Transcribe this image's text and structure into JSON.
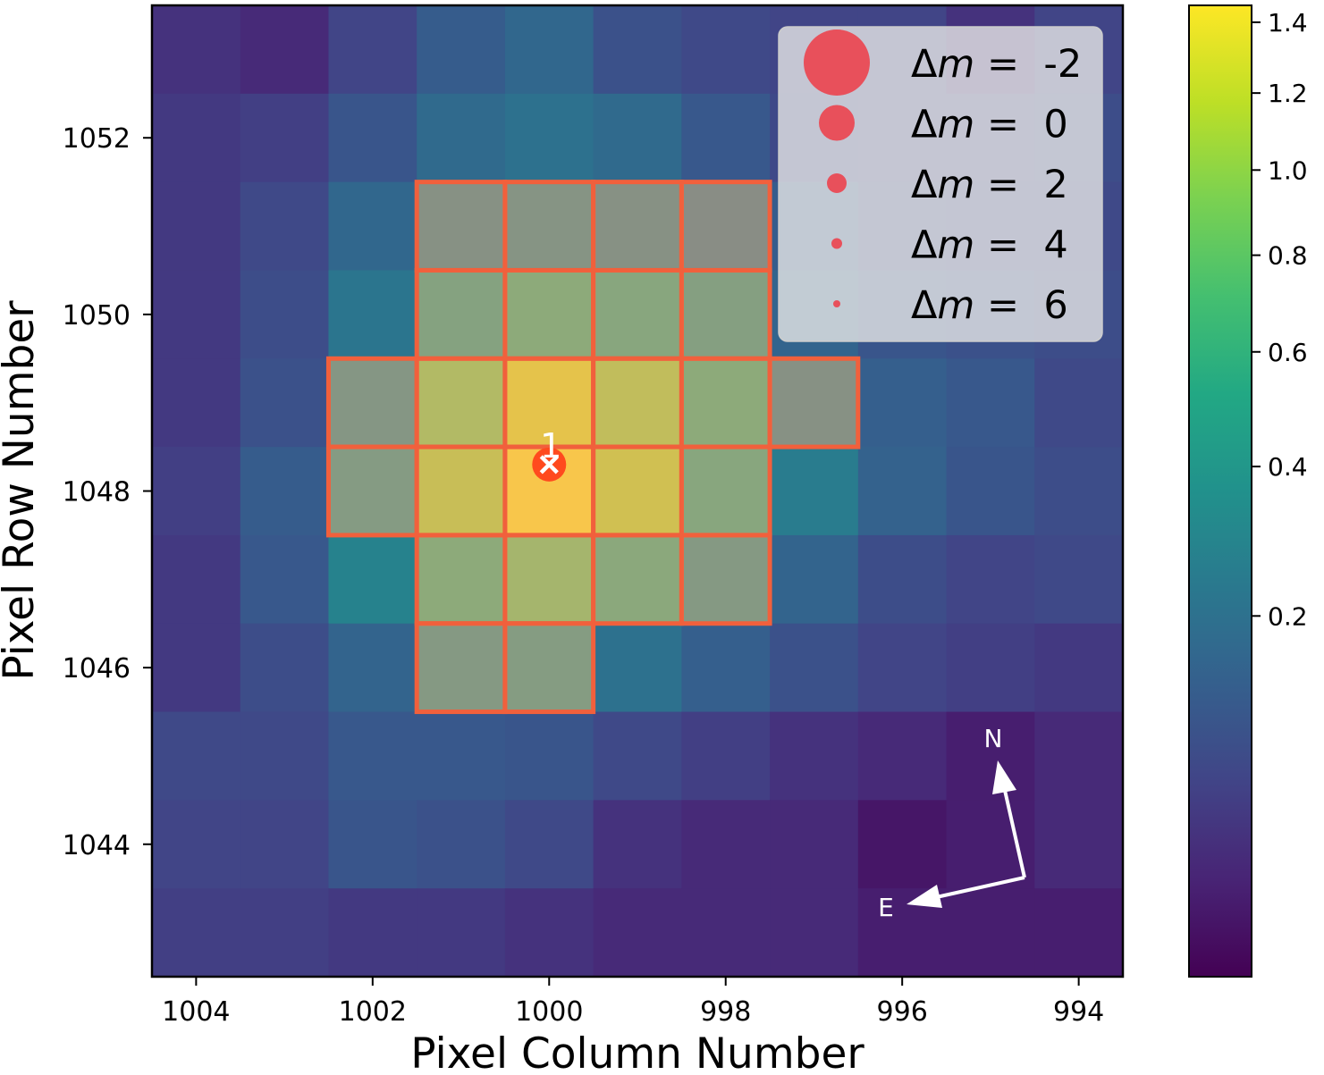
{
  "chart_data": {
    "type": "heatmap",
    "title": "",
    "xlabel": "Pixel Column Number",
    "ylabel": "Pixel Row Number",
    "x_reversed": true,
    "x_columns": [
      1004,
      1003,
      1002,
      1001,
      1000,
      999,
      998,
      997,
      996,
      995,
      994
    ],
    "y_rows": [
      1053,
      1052,
      1051,
      1050,
      1049,
      1048,
      1047,
      1046,
      1045,
      1044,
      1043
    ],
    "x_ticks": [
      "1004",
      "1002",
      "1000",
      "998",
      "996",
      "994"
    ],
    "x_tick_values": [
      1004,
      1002,
      1000,
      998,
      996,
      994
    ],
    "y_ticks": [
      "1052",
      "1050",
      "1048",
      "1046",
      "1044"
    ],
    "y_tick_values": [
      1052,
      1050,
      1048,
      1046,
      1044
    ],
    "xlim": [
      1004.5,
      993.5
    ],
    "ylim": [
      1042.5,
      1053.5
    ],
    "values": [
      [
        0.03,
        0.02,
        0.06,
        0.12,
        0.16,
        0.09,
        0.07,
        0.06,
        0.06,
        0.03,
        0.06
      ],
      [
        0.04,
        0.05,
        0.1,
        0.17,
        0.2,
        0.17,
        0.11,
        0.07,
        0.06,
        0.06,
        0.08
      ],
      [
        0.04,
        0.07,
        0.16,
        0.3,
        0.33,
        0.3,
        0.26,
        0.12,
        0.08,
        0.07,
        0.07
      ],
      [
        0.04,
        0.08,
        0.22,
        0.5,
        0.6,
        0.55,
        0.45,
        0.15,
        0.1,
        0.09,
        0.08
      ],
      [
        0.04,
        0.09,
        0.35,
        0.9,
        1.25,
        1.0,
        0.6,
        0.3,
        0.13,
        0.11,
        0.07
      ],
      [
        0.05,
        0.12,
        0.4,
        1.05,
        1.4,
        1.1,
        0.55,
        0.25,
        0.14,
        0.1,
        0.08
      ],
      [
        0.04,
        0.11,
        0.28,
        0.6,
        0.8,
        0.58,
        0.38,
        0.15,
        0.08,
        0.06,
        0.07
      ],
      [
        0.04,
        0.08,
        0.15,
        0.38,
        0.42,
        0.2,
        0.13,
        0.09,
        0.06,
        0.05,
        0.04
      ],
      [
        0.07,
        0.07,
        0.11,
        0.11,
        0.1,
        0.07,
        0.05,
        0.03,
        0.02,
        0.01,
        0.02
      ],
      [
        0.06,
        0.06,
        0.1,
        0.09,
        0.07,
        0.03,
        0.02,
        0.02,
        0.005,
        0.01,
        0.02
      ],
      [
        0.05,
        0.05,
        0.04,
        0.04,
        0.03,
        0.02,
        0.02,
        0.02,
        0.01,
        0.01,
        0.01
      ]
    ],
    "aperture_pixels": [
      [
        1001,
        1051
      ],
      [
        1000,
        1051
      ],
      [
        999,
        1051
      ],
      [
        998,
        1051
      ],
      [
        1001,
        1050
      ],
      [
        1000,
        1050
      ],
      [
        999,
        1050
      ],
      [
        998,
        1050
      ],
      [
        1002,
        1049
      ],
      [
        1001,
        1049
      ],
      [
        1000,
        1049
      ],
      [
        999,
        1049
      ],
      [
        998,
        1049
      ],
      [
        997,
        1049
      ],
      [
        1002,
        1048
      ],
      [
        1001,
        1048
      ],
      [
        1000,
        1048
      ],
      [
        999,
        1048
      ],
      [
        998,
        1048
      ],
      [
        1001,
        1047
      ],
      [
        1000,
        1047
      ],
      [
        999,
        1047
      ],
      [
        998,
        1047
      ],
      [
        1001,
        1046
      ],
      [
        1000,
        1046
      ]
    ],
    "aperture_color": "#f1603c",
    "target": {
      "label": "1",
      "column": 1000.0,
      "row": 1048.3,
      "marker_color": "#ff4a1e",
      "cross_color": "#ffffff"
    },
    "legend": {
      "position": "top-right",
      "entries": [
        {
          "label_prefix": "Δ",
          "label_var": "m",
          "label_suffix": " =  -2",
          "delta_m": -2
        },
        {
          "label_prefix": "Δ",
          "label_var": "m",
          "label_suffix": " =  0",
          "delta_m": 0
        },
        {
          "label_prefix": "Δ",
          "label_var": "m",
          "label_suffix": " =  2",
          "delta_m": 2
        },
        {
          "label_prefix": "Δ",
          "label_var": "m",
          "label_suffix": " =  4",
          "delta_m": 4
        },
        {
          "label_prefix": "Δ",
          "label_var": "m",
          "label_suffix": " =  6",
          "delta_m": 6
        }
      ],
      "marker_color": "#e8505b"
    },
    "compass": {
      "north_label": "N",
      "east_label": "E",
      "color": "#ffffff"
    },
    "colorbar": {
      "colormap": "viridis",
      "scale": "sqrt",
      "range": [
        0,
        1.45
      ],
      "tick_values": [
        0.2,
        0.4,
        0.6,
        0.8,
        1.0,
        1.2,
        1.4
      ],
      "tick_labels": [
        "0.2",
        "0.4",
        "0.6",
        "0.8",
        "1.0",
        "1.2",
        "1.4"
      ]
    }
  }
}
